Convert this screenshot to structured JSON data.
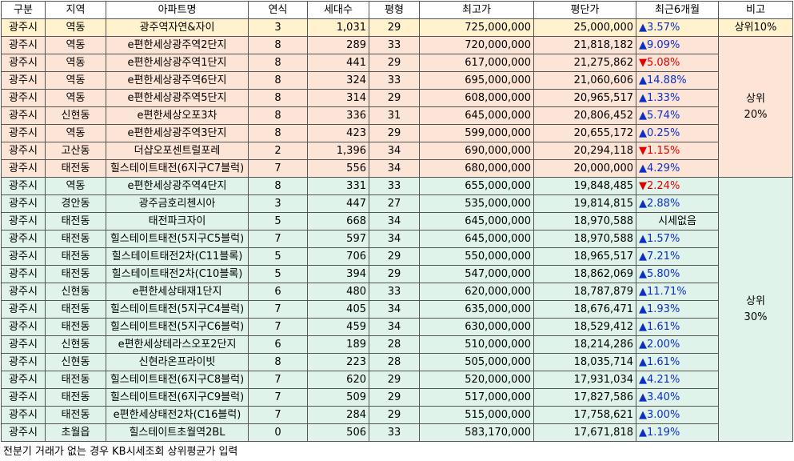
{
  "headers": [
    "구분",
    "지역",
    "아파트명",
    "연식",
    "세대수",
    "평형",
    "최고가",
    "평단가",
    "최근6개월",
    "비고"
  ],
  "groups": [
    {
      "tier": "top10",
      "remark": "상위10%",
      "rows": [
        {
          "city": "광주시",
          "area": "역동",
          "name": "광주역자연&자이",
          "age": "3",
          "units": "1,031",
          "size": "29",
          "max_price": "725,000,000",
          "unit_price": "25,000,000",
          "arrow": "▲",
          "change": "3.57%",
          "dir": "up"
        }
      ]
    },
    {
      "tier": "top20",
      "remark": "상위\n20%",
      "rows": [
        {
          "city": "광주시",
          "area": "역동",
          "name": "e편한세상광주역2단지",
          "age": "8",
          "units": "289",
          "size": "33",
          "max_price": "720,000,000",
          "unit_price": "21,818,182",
          "arrow": "▲",
          "change": "9.09%",
          "dir": "up"
        },
        {
          "city": "광주시",
          "area": "역동",
          "name": "e편한세상광주역1단지",
          "age": "8",
          "units": "441",
          "size": "29",
          "max_price": "617,000,000",
          "unit_price": "21,275,862",
          "arrow": "▼",
          "change": "5.08%",
          "dir": "down"
        },
        {
          "city": "광주시",
          "area": "역동",
          "name": "e편한세상광주역6단지",
          "age": "8",
          "units": "324",
          "size": "33",
          "max_price": "695,000,000",
          "unit_price": "21,060,606",
          "arrow": "▲",
          "change": "14.88%",
          "dir": "up"
        },
        {
          "city": "광주시",
          "area": "역동",
          "name": "e편한세상광주역5단지",
          "age": "8",
          "units": "314",
          "size": "29",
          "max_price": "608,000,000",
          "unit_price": "20,965,517",
          "arrow": "▲",
          "change": "1.33%",
          "dir": "up"
        },
        {
          "city": "광주시",
          "area": "신현동",
          "name": "e편한세상오포3차",
          "age": "8",
          "units": "336",
          "size": "31",
          "max_price": "645,000,000",
          "unit_price": "20,806,452",
          "arrow": "▲",
          "change": "5.74%",
          "dir": "up"
        },
        {
          "city": "광주시",
          "area": "역동",
          "name": "e편한세상광주역3단지",
          "age": "8",
          "units": "423",
          "size": "29",
          "max_price": "599,000,000",
          "unit_price": "20,655,172",
          "arrow": "▲",
          "change": "0.25%",
          "dir": "up"
        },
        {
          "city": "광주시",
          "area": "고산동",
          "name": "더샵오포센트럴포레",
          "age": "2",
          "units": "1,396",
          "size": "34",
          "max_price": "690,000,000",
          "unit_price": "20,294,118",
          "arrow": "▼",
          "change": "1.15%",
          "dir": "down"
        },
        {
          "city": "광주시",
          "area": "태전동",
          "name": "힐스테이트태전(6지구C7블럭)",
          "age": "7",
          "units": "556",
          "size": "34",
          "max_price": "680,000,000",
          "unit_price": "20,000,000",
          "arrow": "▲",
          "change": "4.29%",
          "dir": "up"
        }
      ]
    },
    {
      "tier": "top30",
      "remark": "상위\n30%",
      "rows": [
        {
          "city": "광주시",
          "area": "역동",
          "name": "e편한세상광주역4단지",
          "age": "8",
          "units": "331",
          "size": "33",
          "max_price": "655,000,000",
          "unit_price": "19,848,485",
          "arrow": "▼",
          "change": "2.24%",
          "dir": "down"
        },
        {
          "city": "광주시",
          "area": "경안동",
          "name": "광주금호리첸시아",
          "age": "3",
          "units": "447",
          "size": "27",
          "max_price": "535,000,000",
          "unit_price": "19,814,815",
          "arrow": "▲",
          "change": "2.88%",
          "dir": "up"
        },
        {
          "city": "광주시",
          "area": "태전동",
          "name": "태전파크자이",
          "age": "5",
          "units": "668",
          "size": "34",
          "max_price": "645,000,000",
          "unit_price": "18,970,588",
          "arrow": "",
          "change": "시세없음",
          "dir": "none"
        },
        {
          "city": "광주시",
          "area": "태전동",
          "name": "힐스테이트태전(5지구C5블럭)",
          "age": "7",
          "units": "597",
          "size": "34",
          "max_price": "645,000,000",
          "unit_price": "18,970,588",
          "arrow": "▲",
          "change": "1.57%",
          "dir": "up"
        },
        {
          "city": "광주시",
          "area": "태전동",
          "name": "힐스테이트태전2차(C11블록)",
          "age": "5",
          "units": "706",
          "size": "29",
          "max_price": "550,000,000",
          "unit_price": "18,965,517",
          "arrow": "▲",
          "change": "7.21%",
          "dir": "up"
        },
        {
          "city": "광주시",
          "area": "태전동",
          "name": "힐스테이트태전2차(C10블록)",
          "age": "5",
          "units": "394",
          "size": "29",
          "max_price": "547,000,000",
          "unit_price": "18,862,069",
          "arrow": "▲",
          "change": "5.80%",
          "dir": "up"
        },
        {
          "city": "광주시",
          "area": "신현동",
          "name": "e편한세상태재1단지",
          "age": "6",
          "units": "480",
          "size": "33",
          "max_price": "620,000,000",
          "unit_price": "18,787,879",
          "arrow": "▲",
          "change": "11.71%",
          "dir": "up"
        },
        {
          "city": "광주시",
          "area": "태전동",
          "name": "힐스테이트태전(5지구C4블럭)",
          "age": "7",
          "units": "405",
          "size": "34",
          "max_price": "635,000,000",
          "unit_price": "18,676,471",
          "arrow": "▲",
          "change": "1.93%",
          "dir": "up"
        },
        {
          "city": "광주시",
          "area": "태전동",
          "name": "힐스테이트태전(5지구C6블럭)",
          "age": "7",
          "units": "459",
          "size": "34",
          "max_price": "630,000,000",
          "unit_price": "18,529,412",
          "arrow": "▲",
          "change": "1.61%",
          "dir": "up"
        },
        {
          "city": "광주시",
          "area": "신현동",
          "name": "e편한세상테라스오포2단지",
          "age": "6",
          "units": "189",
          "size": "28",
          "max_price": "510,000,000",
          "unit_price": "18,214,286",
          "arrow": "▲",
          "change": "2.00%",
          "dir": "up"
        },
        {
          "city": "광주시",
          "area": "신현동",
          "name": "신현라온프라이빗",
          "age": "8",
          "units": "223",
          "size": "28",
          "max_price": "505,000,000",
          "unit_price": "18,035,714",
          "arrow": "▲",
          "change": "1.61%",
          "dir": "up"
        },
        {
          "city": "광주시",
          "area": "태전동",
          "name": "힐스테이트태전(6지구C8블럭)",
          "age": "7",
          "units": "620",
          "size": "29",
          "max_price": "520,000,000",
          "unit_price": "17,931,034",
          "arrow": "▲",
          "change": "4.21%",
          "dir": "up"
        },
        {
          "city": "광주시",
          "area": "태전동",
          "name": "힐스테이트태전(6지구C9블럭)",
          "age": "7",
          "units": "509",
          "size": "29",
          "max_price": "517,000,000",
          "unit_price": "17,827,586",
          "arrow": "▲",
          "change": "3.40%",
          "dir": "up"
        },
        {
          "city": "광주시",
          "area": "태전동",
          "name": "e편한세상태전2차(C16블럭)",
          "age": "7",
          "units": "284",
          "size": "29",
          "max_price": "515,000,000",
          "unit_price": "17,758,621",
          "arrow": "▲",
          "change": "3.00%",
          "dir": "up"
        },
        {
          "city": "광주시",
          "area": "초월읍",
          "name": "힐스테이트초월역2BL",
          "age": "0",
          "units": "506",
          "size": "33",
          "max_price": "583,170,000",
          "unit_price": "17,671,818",
          "arrow": "▲",
          "change": "1.19%",
          "dir": "up"
        }
      ]
    }
  ],
  "footnote": "전분기 거래가 없는 경우 KB시세조회 상위평균가 입력",
  "colors": {
    "top10": "#fff2cc",
    "top20": "#fce4d6",
    "top30": "#dff3ea",
    "up": "#0b2fc2",
    "down": "#e00000"
  }
}
